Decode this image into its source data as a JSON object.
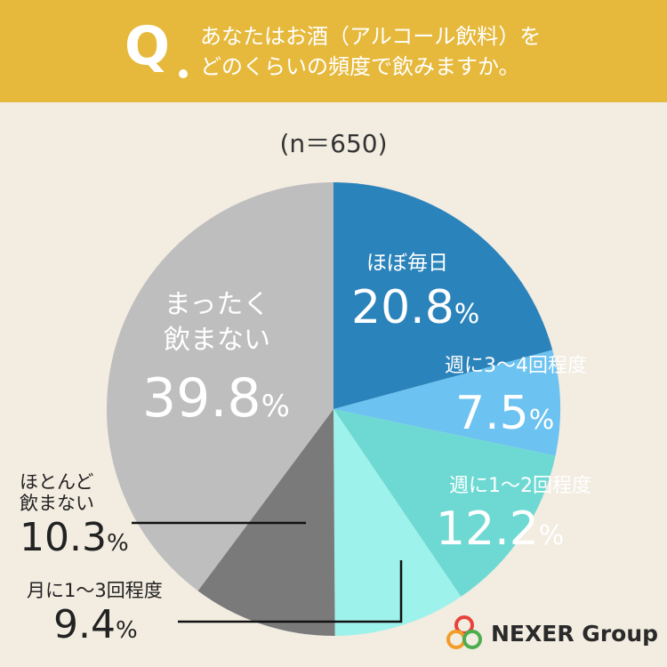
{
  "header": {
    "q_mark": "Q",
    "question_line1": "あなたはお酒（アルコール飲料）を",
    "question_line2": "どのくらいの頻度で飲みますか。"
  },
  "sample_size": "(n＝650)",
  "chart_data": {
    "type": "pie",
    "start_angle_deg": 0,
    "direction": "clockwise",
    "slices": [
      {
        "label": "ほぼ毎日",
        "value": 20.8,
        "value_text": "20.8",
        "color": "#2b83bb"
      },
      {
        "label": "週に3～4回程度",
        "value": 7.5,
        "value_text": "7.5",
        "color": "#6cc2f0"
      },
      {
        "label": "週に1～2回程度",
        "value": 12.2,
        "value_text": "12.2",
        "color": "#6ed9d3"
      },
      {
        "label": "月に1～3回程度",
        "value": 9.4,
        "value_text": "9.4",
        "color": "#9ef2ec"
      },
      {
        "label": "ほとんど飲まない",
        "value": 10.3,
        "value_text": "10.3",
        "color": "#7a7a7a"
      },
      {
        "label": "まったく飲まない",
        "value": 39.8,
        "value_text": "39.8",
        "color": "#bebebe"
      }
    ],
    "unit": "%"
  },
  "labels": {
    "hobo_mainichi": "ほぼ毎日",
    "shu34": "週に3～4回程度",
    "shu12": "週に1～2回程度",
    "tsuki13": "月に1～3回程度",
    "hotondo_line1": "ほとんど",
    "hotondo_line2": "飲まない",
    "mattaku_line1": "まったく",
    "mattaku_line2": "飲まない",
    "percent": "%"
  },
  "logo": {
    "text": "NEXER Group",
    "colors": [
      "#e8433a",
      "#f29d2a",
      "#4cae4f"
    ]
  }
}
